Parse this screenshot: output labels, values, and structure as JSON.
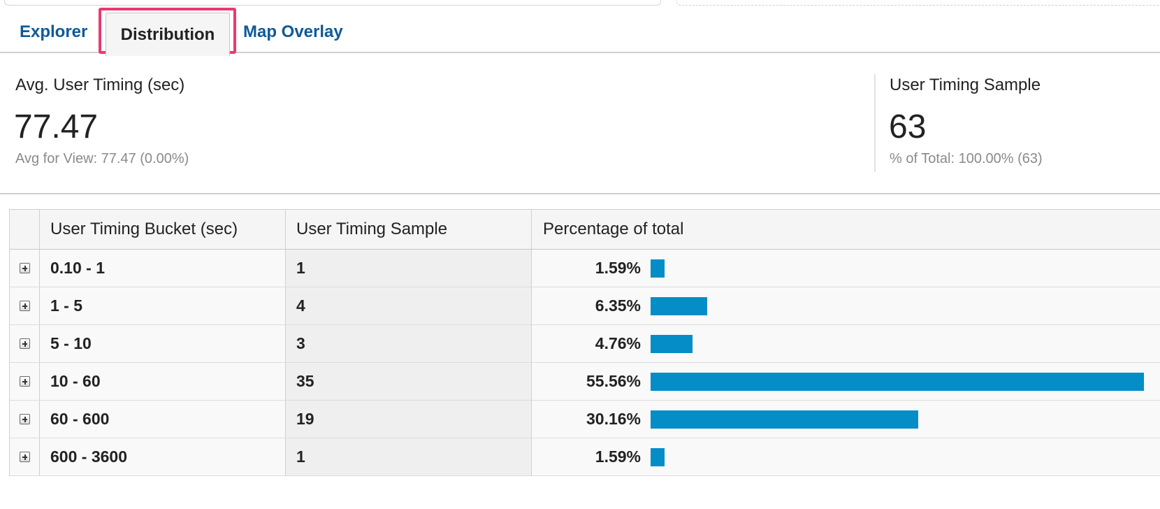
{
  "tabs": {
    "explorer": "Explorer",
    "distribution": "Distribution",
    "map_overlay": "Map Overlay",
    "active": "Distribution"
  },
  "metrics": [
    {
      "label": "Avg. User Timing (sec)",
      "value": "77.47",
      "sub": "Avg for View: 77.47 (0.00%)"
    },
    {
      "label": "User Timing Sample",
      "value": "63",
      "sub": "% of Total: 100.00% (63)"
    }
  ],
  "table": {
    "headers": [
      "User Timing Bucket (sec)",
      "User Timing Sample",
      "Percentage of total"
    ],
    "rows": [
      {
        "bucket": "0.10 - 1",
        "sample": "1",
        "percent_label": "1.59%",
        "percent": 1.59
      },
      {
        "bucket": "1 - 5",
        "sample": "4",
        "percent_label": "6.35%",
        "percent": 6.35
      },
      {
        "bucket": "5 - 10",
        "sample": "3",
        "percent_label": "4.76%",
        "percent": 4.76
      },
      {
        "bucket": "10 - 60",
        "sample": "35",
        "percent_label": "55.56%",
        "percent": 55.56
      },
      {
        "bucket": "60 - 600",
        "sample": "19",
        "percent_label": "30.16%",
        "percent": 30.16
      },
      {
        "bucket": "600 - 3600",
        "sample": "1",
        "percent_label": "1.59%",
        "percent": 1.59
      }
    ],
    "bar_color": "#058dc7",
    "row_icon": "expand-plus-icon"
  },
  "colors": {
    "tab_link": "#0d5a9a",
    "highlight_outline": "#e83a72"
  }
}
